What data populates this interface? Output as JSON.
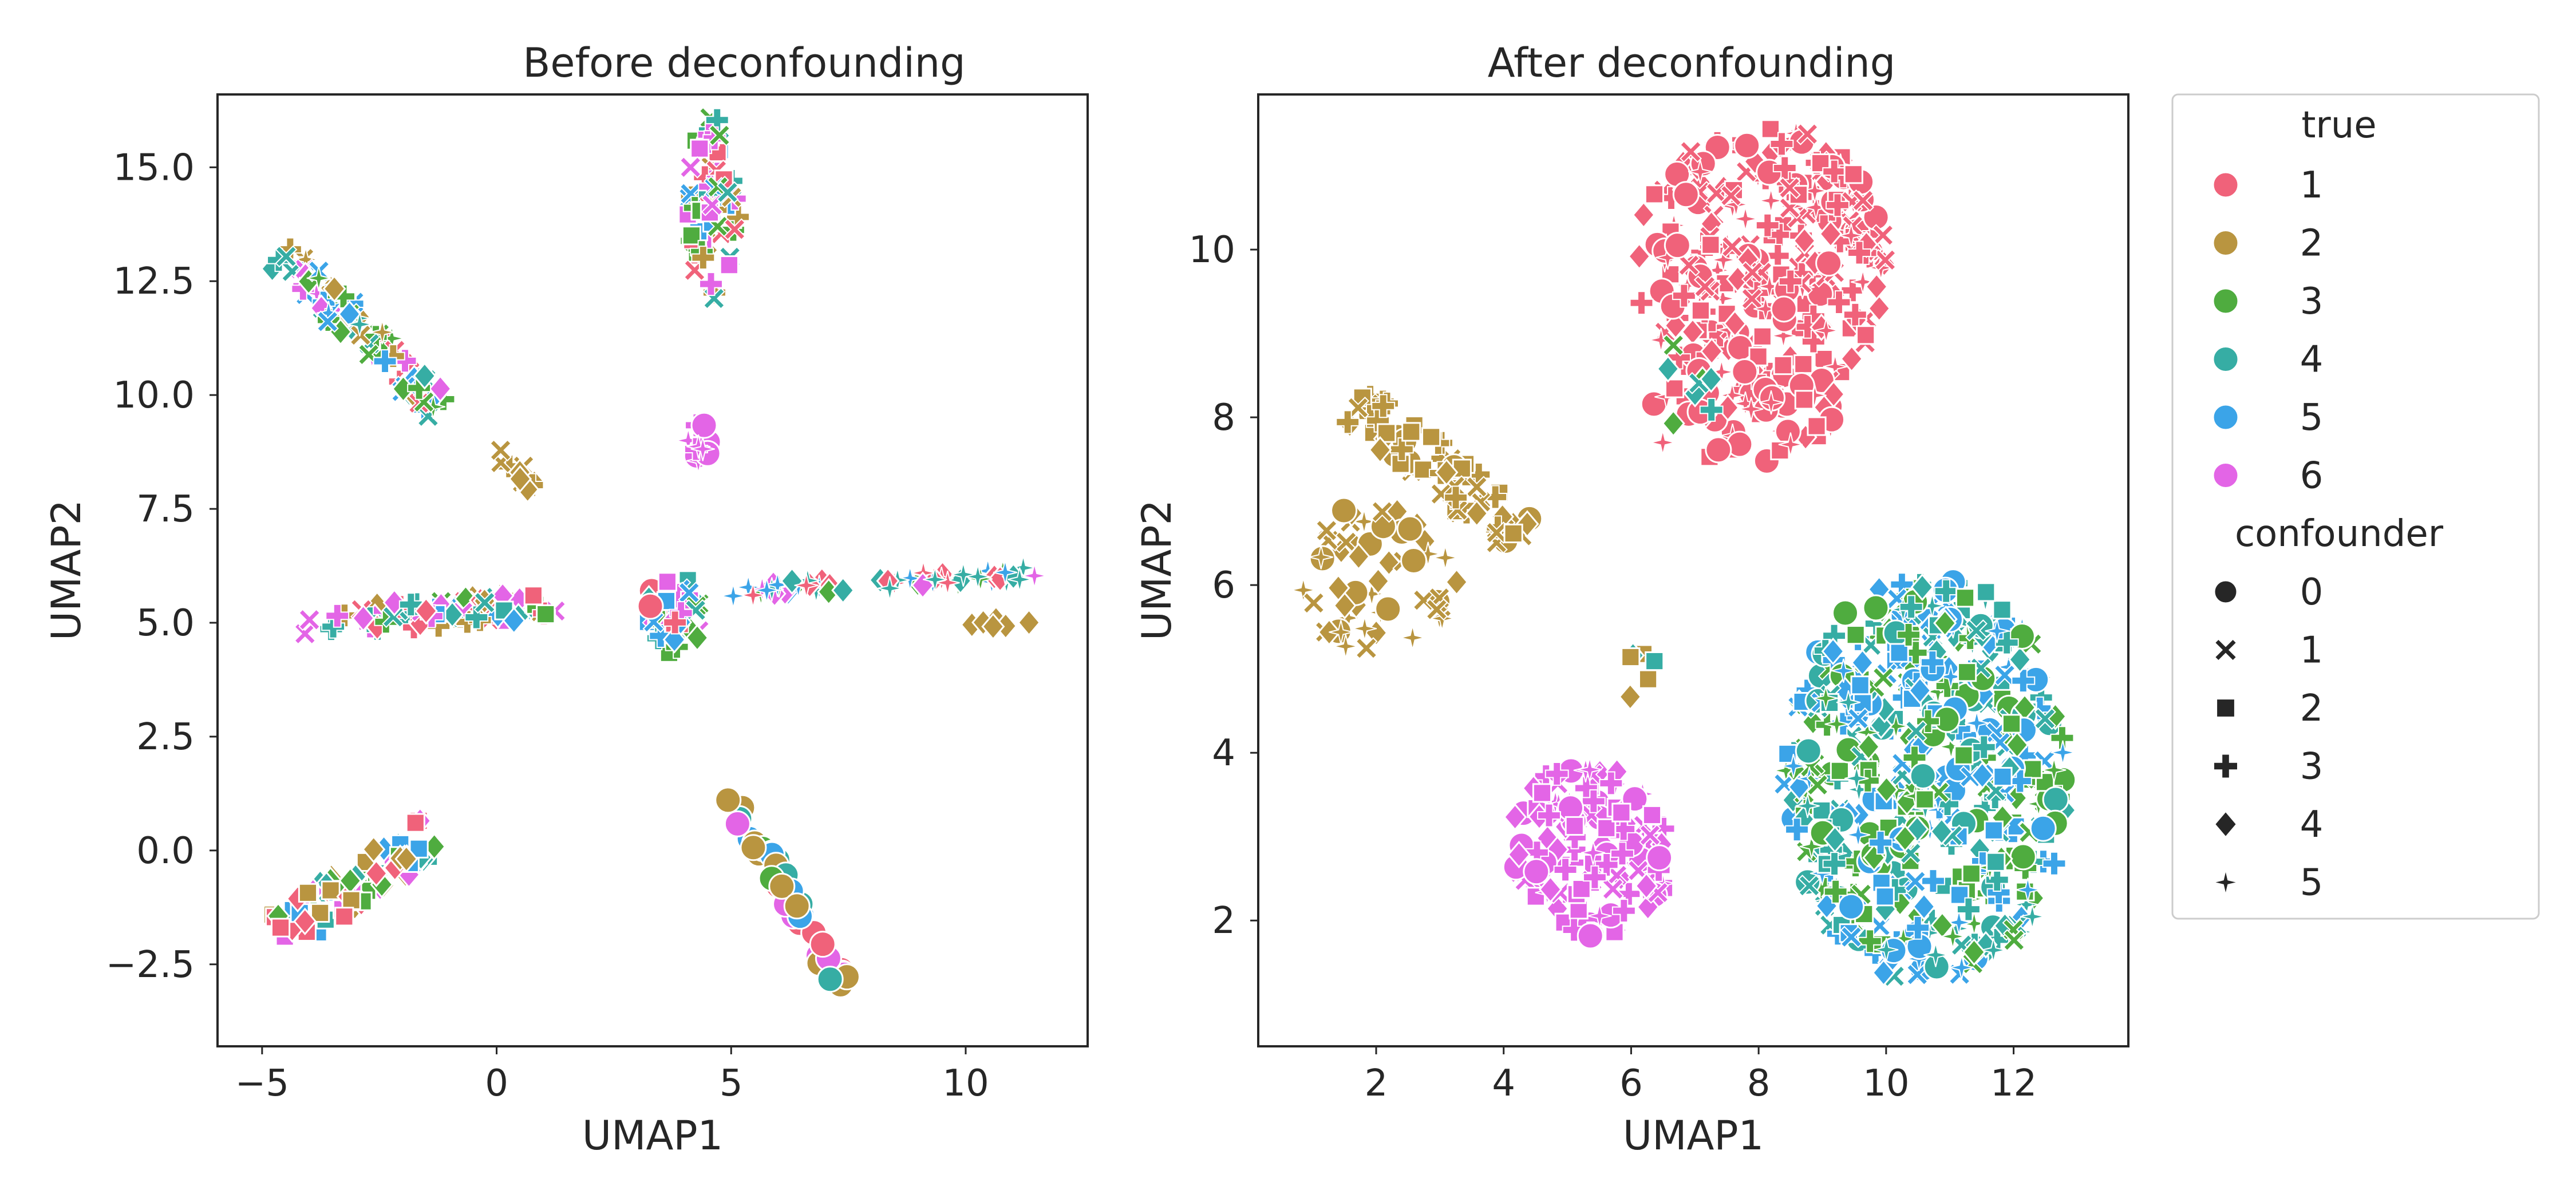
{
  "chart_data": [
    {
      "type": "scatter",
      "title": "Before deconfounding",
      "xlabel": "UMAP1",
      "ylabel": "UMAP2",
      "xlim": [
        -5.95,
        12.6
      ],
      "ylim": [
        -4.3,
        16.6
      ],
      "xticks": [
        -5,
        0,
        5,
        10
      ],
      "xtick_labels": [
        "−5",
        "0",
        "5",
        "10"
      ],
      "yticks": [
        -2.5,
        0.0,
        2.5,
        5.0,
        7.5,
        10.0,
        12.5,
        15.0
      ],
      "ytick_labels": [
        "−2.5",
        "0.0",
        "2.5",
        "5.0",
        "7.5",
        "10.0",
        "12.5",
        "15.0"
      ],
      "grid": false,
      "clusters": [
        {
          "shape": "segment",
          "from": [
            -4.6,
            13.1
          ],
          "to": [
            -1.2,
            9.8
          ],
          "width": 0.75,
          "n": 90,
          "colors": [
            1,
            2,
            3,
            4,
            5,
            6
          ],
          "markers": [
            1,
            3,
            4,
            5
          ]
        },
        {
          "shape": "segment",
          "from": [
            0.1,
            8.8
          ],
          "to": [
            0.8,
            8.0
          ],
          "width": 0.4,
          "n": 10,
          "colors": [
            2
          ],
          "markers": [
            1,
            3,
            4
          ]
        },
        {
          "shape": "segment",
          "from": [
            -4.3,
            5.0
          ],
          "to": [
            1.3,
            5.4
          ],
          "width": 0.6,
          "n": 75,
          "colors": [
            1,
            2,
            3,
            4,
            5,
            6
          ],
          "markers": [
            1,
            2,
            3,
            4
          ]
        },
        {
          "shape": "ellipse",
          "center": [
            4.6,
            14.1
          ],
          "radius": [
            0.55,
            2.0
          ],
          "n": 70,
          "colors": [
            1,
            2,
            3,
            4,
            5,
            6
          ],
          "markers": [
            1,
            2,
            3
          ]
        },
        {
          "shape": "ellipse",
          "center": [
            4.3,
            8.8
          ],
          "radius": [
            0.3,
            0.6
          ],
          "n": 10,
          "colors": [
            6
          ],
          "markers": [
            0,
            3,
            5
          ]
        },
        {
          "shape": "ellipse",
          "center": [
            3.8,
            5.1
          ],
          "radius": [
            0.65,
            0.95
          ],
          "n": 45,
          "colors": [
            1,
            3,
            4,
            5,
            6
          ],
          "markers": [
            0,
            1,
            2,
            3,
            4
          ]
        },
        {
          "shape": "segment",
          "from": [
            5.0,
            5.7
          ],
          "to": [
            11.6,
            6.1
          ],
          "width": 0.3,
          "n": 60,
          "colors": [
            1,
            3,
            4,
            5,
            6
          ],
          "markers": [
            4,
            5
          ]
        },
        {
          "shape": "segment",
          "from": [
            10.0,
            5.0
          ],
          "to": [
            11.5,
            5.0
          ],
          "width": 0.2,
          "n": 6,
          "colors": [
            2
          ],
          "markers": [
            4
          ]
        },
        {
          "shape": "segment",
          "from": [
            -4.6,
            -1.8
          ],
          "to": [
            -1.4,
            0.3
          ],
          "width": 0.9,
          "n": 85,
          "colors": [
            1,
            2,
            3,
            4,
            5,
            6
          ],
          "markers": [
            2,
            4
          ]
        },
        {
          "shape": "segment",
          "from": [
            5.0,
            1.2
          ],
          "to": [
            7.5,
            -3.2
          ],
          "width": 0.45,
          "n": 45,
          "colors": [
            1,
            2,
            3,
            4,
            5,
            6
          ],
          "markers": [
            0
          ]
        }
      ]
    },
    {
      "type": "scatter",
      "title": "After deconfounding",
      "xlabel": "UMAP1",
      "ylabel": "UMAP2",
      "xlim": [
        0.15,
        13.8
      ],
      "ylim": [
        0.5,
        11.85
      ],
      "xticks": [
        2,
        4,
        6,
        8,
        10,
        12
      ],
      "xtick_labels": [
        "2",
        "4",
        "6",
        "8",
        "10",
        "12"
      ],
      "yticks": [
        2,
        4,
        6,
        8,
        10
      ],
      "ytick_labels": [
        "2",
        "4",
        "6",
        "8",
        "10"
      ],
      "grid": false,
      "clusters": [
        {
          "shape": "ellipse",
          "center": [
            8.05,
            9.8
          ],
          "radius": [
            2.0,
            1.7
          ],
          "n": 280,
          "colors": [
            1
          ],
          "markers": [
            0,
            1,
            2,
            3,
            4,
            5
          ]
        },
        {
          "shape": "ellipse",
          "center": [
            7.8,
            8.0
          ],
          "radius": [
            1.6,
            0.55
          ],
          "n": 45,
          "colors": [
            1
          ],
          "markers": [
            0,
            2,
            4,
            5
          ]
        },
        {
          "shape": "ellipse",
          "center": [
            6.8,
            8.4
          ],
          "radius": [
            0.6,
            0.8
          ],
          "n": 8,
          "colors": [
            3,
            4
          ],
          "markers": [
            1,
            3,
            4
          ]
        },
        {
          "shape": "segment",
          "from": [
            1.6,
            8.2
          ],
          "to": [
            4.3,
            6.6
          ],
          "width": 0.6,
          "n": 70,
          "colors": [
            2
          ],
          "markers": [
            0,
            1,
            2,
            3,
            4
          ]
        },
        {
          "shape": "ellipse",
          "center": [
            2.0,
            6.1
          ],
          "radius": [
            1.3,
            0.9
          ],
          "n": 55,
          "colors": [
            2
          ],
          "markers": [
            0,
            1,
            4,
            5
          ]
        },
        {
          "shape": "ellipse",
          "center": [
            6.1,
            4.95
          ],
          "radius": [
            0.3,
            0.35
          ],
          "n": 6,
          "colors": [
            2,
            4
          ],
          "markers": [
            2,
            4
          ]
        },
        {
          "shape": "ellipse",
          "center": [
            5.35,
            2.85
          ],
          "radius": [
            1.3,
            1.05
          ],
          "n": 130,
          "colors": [
            6
          ],
          "markers": [
            0,
            1,
            2,
            3,
            4,
            5
          ]
        },
        {
          "shape": "ellipse",
          "center": [
            10.65,
            3.7
          ],
          "radius": [
            2.25,
            2.45
          ],
          "n": 520,
          "colors": [
            3,
            4,
            5
          ],
          "markers": [
            0,
            1,
            2,
            3,
            4,
            5
          ]
        }
      ]
    }
  ],
  "legend": {
    "placement": "right",
    "hue_title": "true",
    "hue_items": [
      {
        "label": "1",
        "color": "#f0627a"
      },
      {
        "label": "2",
        "color": "#b99540"
      },
      {
        "label": "3",
        "color": "#4fac3f"
      },
      {
        "label": "4",
        "color": "#36ada4"
      },
      {
        "label": "5",
        "color": "#3ba4e8"
      },
      {
        "label": "6",
        "color": "#e365e6"
      }
    ],
    "style_title": "confounder",
    "style_items": [
      {
        "label": "0",
        "marker": "circle"
      },
      {
        "label": "1",
        "marker": "x"
      },
      {
        "label": "2",
        "marker": "square"
      },
      {
        "label": "3",
        "marker": "plus"
      },
      {
        "label": "4",
        "marker": "diamond"
      },
      {
        "label": "5",
        "marker": "star"
      }
    ]
  }
}
